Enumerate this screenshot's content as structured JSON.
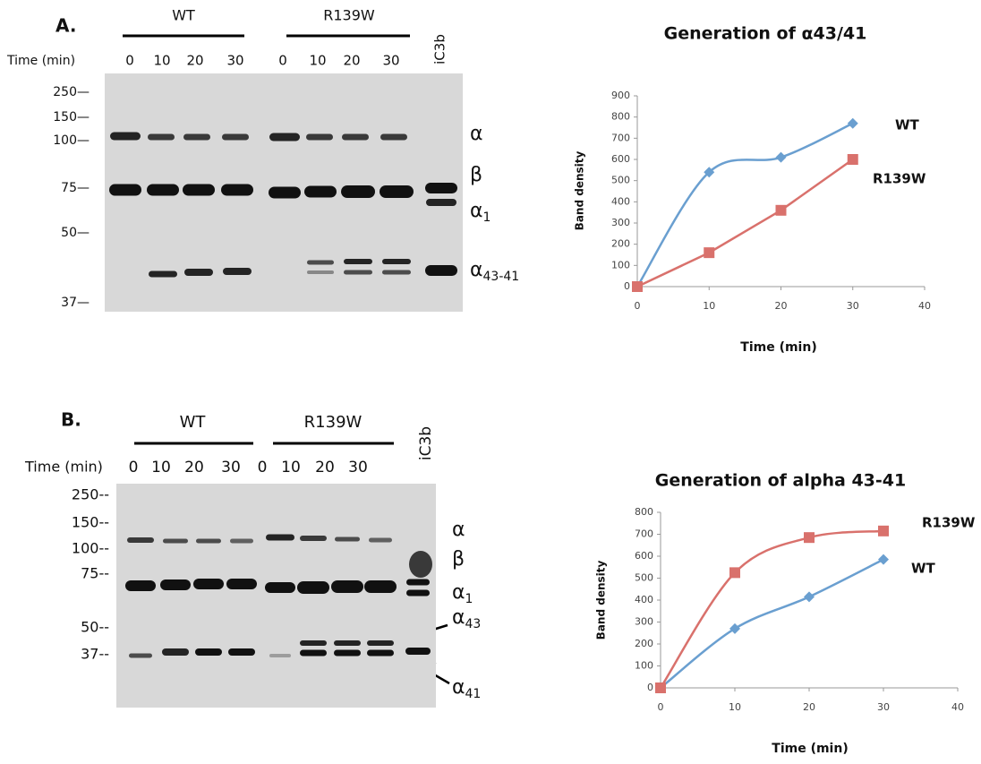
{
  "blots": [
    {
      "panel": "A.",
      "groups": [
        "WT",
        "R139W"
      ],
      "time_label": "Time (min)",
      "lanes": [
        "0",
        "10",
        "20",
        "30",
        "0",
        "10",
        "20",
        "30"
      ],
      "control": "iC3b",
      "markers": [
        "250—",
        "150—",
        "100—",
        "75—",
        "50—",
        "37—"
      ],
      "bands": [
        {
          "base": "α"
        },
        {
          "base": "β"
        },
        {
          "base": "α",
          "sub": "1"
        },
        {
          "base": "α",
          "sub": "43-41"
        }
      ]
    },
    {
      "panel": "B.",
      "groups": [
        "WT",
        "R139W"
      ],
      "time_label": "Time (min)",
      "lanes": [
        "0",
        "10",
        "20",
        "30",
        "0",
        "10",
        "20",
        "30"
      ],
      "control": "iC3b",
      "markers": [
        "250--",
        "150--",
        "100--",
        "75--",
        "50--",
        "37--"
      ],
      "bands": [
        {
          "base": "α"
        },
        {
          "base": "β"
        },
        {
          "base": "α",
          "sub": "1"
        },
        {
          "base": "α",
          "sub": "43"
        },
        {
          "base": "α",
          "sub": "41"
        }
      ]
    }
  ],
  "chart_data": [
    {
      "type": "line",
      "title": "Generation of α43/41",
      "x_label": "Time (min)",
      "y_label": "Band density",
      "x": [
        0,
        10,
        20,
        30
      ],
      "xlim": [
        0,
        40
      ],
      "xticks": [
        0,
        10,
        20,
        30,
        40
      ],
      "ylim": [
        0,
        900
      ],
      "yticks": [
        0,
        100,
        200,
        300,
        400,
        500,
        600,
        700,
        800,
        900
      ],
      "series": [
        {
          "name": "WT",
          "color": "#6a9fd0",
          "marker": "diamond",
          "smooth": true,
          "values": [
            0,
            540,
            610,
            770
          ]
        },
        {
          "name": "R139W",
          "color": "#d9716c",
          "marker": "square",
          "smooth": false,
          "values": [
            0,
            160,
            360,
            600
          ]
        }
      ]
    },
    {
      "type": "line",
      "title": "Generation of alpha 43-41",
      "x_label": "Time (min)",
      "y_label": "Band density",
      "x": [
        0,
        10,
        20,
        30
      ],
      "xlim": [
        0,
        40
      ],
      "xticks": [
        0,
        10,
        20,
        30,
        40
      ],
      "ylim": [
        0,
        800
      ],
      "yticks": [
        0,
        100,
        200,
        300,
        400,
        500,
        600,
        700,
        800
      ],
      "series": [
        {
          "name": "WT",
          "color": "#6a9fd0",
          "marker": "diamond",
          "smooth": true,
          "values": [
            0,
            270,
            415,
            585
          ]
        },
        {
          "name": "R139W",
          "color": "#d9716c",
          "marker": "square",
          "smooth": true,
          "values": [
            0,
            525,
            685,
            715
          ]
        }
      ]
    }
  ]
}
